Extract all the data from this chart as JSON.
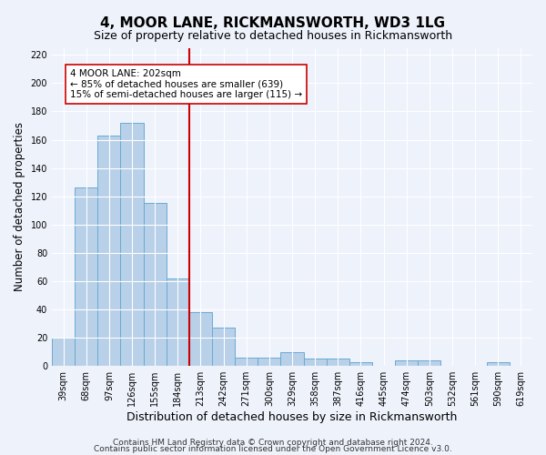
{
  "title1": "4, MOOR LANE, RICKMANSWORTH, WD3 1LG",
  "title2": "Size of property relative to detached houses in Rickmansworth",
  "xlabel": "Distribution of detached houses by size in Rickmansworth",
  "ylabel": "Number of detached properties",
  "categories": [
    "39sqm",
    "68sqm",
    "97sqm",
    "126sqm",
    "155sqm",
    "184sqm",
    "213sqm",
    "242sqm",
    "271sqm",
    "300sqm",
    "329sqm",
    "358sqm",
    "387sqm",
    "416sqm",
    "445sqm",
    "474sqm",
    "503sqm",
    "532sqm",
    "561sqm",
    "590sqm",
    "619sqm"
  ],
  "values": [
    20,
    126,
    163,
    172,
    115,
    62,
    38,
    27,
    6,
    6,
    10,
    5,
    5,
    3,
    0,
    4,
    4,
    0,
    0,
    3,
    0
  ],
  "bar_color": "#b8d0e8",
  "bar_edge_color": "#6aaad4",
  "vline_x_index": 6,
  "vline_color": "#cc0000",
  "annotation_text": "4 MOOR LANE: 202sqm\n← 85% of detached houses are smaller (639)\n15% of semi-detached houses are larger (115) →",
  "annotation_box_color": "#ffffff",
  "annotation_box_edge_color": "#cc0000",
  "ylim": [
    0,
    225
  ],
  "yticks": [
    0,
    20,
    40,
    60,
    80,
    100,
    120,
    140,
    160,
    180,
    200,
    220
  ],
  "footnote1": "Contains HM Land Registry data © Crown copyright and database right 2024.",
  "footnote2": "Contains public sector information licensed under the Open Government Licence v3.0.",
  "background_color": "#eef2fb",
  "grid_color": "#ffffff",
  "title1_fontsize": 11,
  "title2_fontsize": 9,
  "xlabel_fontsize": 9,
  "ylabel_fontsize": 8.5,
  "tick_fontsize": 7,
  "footnote_fontsize": 6.5
}
